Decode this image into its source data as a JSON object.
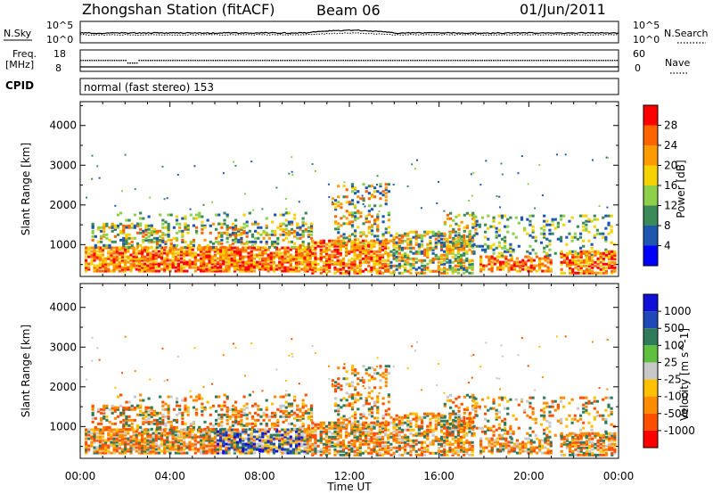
{
  "header": {
    "station": "Zhongshan Station (fitACF)",
    "beam": "Beam 06",
    "date": "01/Jun/2011"
  },
  "noise_panel": {
    "left_label": "N.Sky",
    "right_label": "N.Search",
    "left_ticks": [
      "10^5",
      "10^0"
    ],
    "right_ticks": [
      "10^5",
      "10^0"
    ]
  },
  "freq_panel": {
    "left_label_1": "Freq.",
    "left_label_2": "[MHz]",
    "right_label": "Nave",
    "left_ticks": [
      "18",
      "8"
    ],
    "right_ticks": [
      "60",
      "0"
    ]
  },
  "cpid": {
    "label": "CPID",
    "mode": "normal (fast stereo) 153"
  },
  "chart_data": [
    {
      "type": "heatmap",
      "name": "power",
      "ylabel": "Slant Range [km]",
      "yticks": [
        1000,
        2000,
        3000,
        4000
      ],
      "ylim": [
        200,
        4600
      ],
      "xlim": [
        0,
        24
      ],
      "colorbar": {
        "label": "Power [dB]",
        "ticks": [
          "4",
          "8",
          "12",
          "16",
          "20",
          "24",
          "28"
        ],
        "colors": [
          "#0000ff",
          "#1e56b0",
          "#3a8a5a",
          "#8ed04a",
          "#f5d200",
          "#ff9a00",
          "#ff6400",
          "#ff0000"
        ]
      }
    },
    {
      "type": "heatmap",
      "name": "velocity",
      "ylabel": "Slant Range [km]",
      "yticks": [
        1000,
        2000,
        3000,
        4000
      ],
      "ylim": [
        200,
        4600
      ],
      "xlim": [
        0,
        24
      ],
      "colorbar": {
        "label": "Velocity [m s^-1]",
        "ticks": [
          "1000",
          "500",
          "100",
          "25",
          "-25",
          "-100",
          "-500",
          "-1000"
        ],
        "colors": [
          "#1010d8",
          "#2048b8",
          "#2f7a5a",
          "#5fc040",
          "#c8c8c8",
          "#ffc000",
          "#ff8c00",
          "#ff5000",
          "#ff0000"
        ]
      }
    }
  ],
  "time_axis": {
    "label": "Time UT",
    "ticks": [
      "00:00",
      "04:00",
      "08:00",
      "12:00",
      "16:00",
      "20:00",
      "00:00"
    ]
  },
  "colors": {
    "frame": "#000000",
    "background": "#ffffff"
  }
}
